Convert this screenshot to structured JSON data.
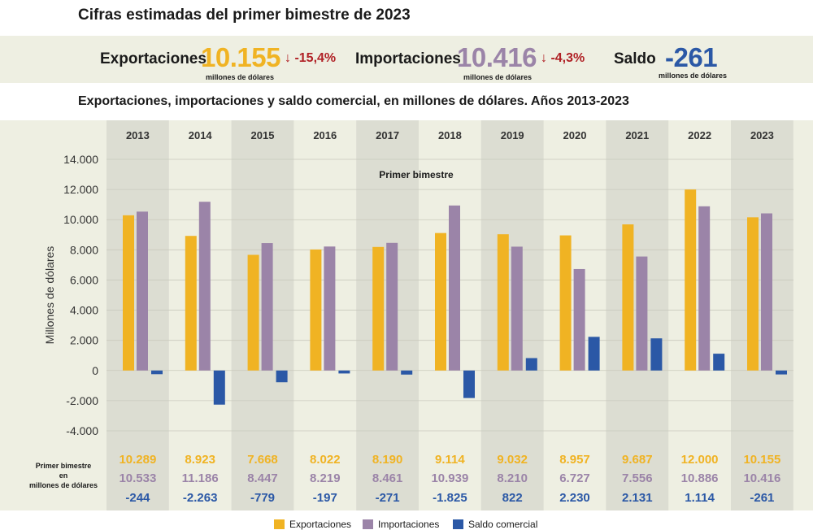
{
  "title": "Cifras estimadas del primer bimestre de 2023",
  "kpis": {
    "exports_label": "Exportaciones",
    "exports_value": "10.155",
    "exports_unit": "millones de dólares",
    "exports_change": "↓ -15,4%",
    "imports_label": "Importaciones",
    "imports_value": "10.416",
    "imports_unit": "millones de dólares",
    "imports_change": "↓ -4,3%",
    "balance_label": "Saldo",
    "balance_value": "-261",
    "balance_unit": "millones de dólares"
  },
  "subtitle": "Exportaciones, importaciones y saldo comercial, en millones de dólares. Años 2013-2023",
  "colors": {
    "exports": "#f0b323",
    "imports": "#9b84a8",
    "balance": "#2b58a6",
    "shade": "#dcddd2",
    "band": "#eeefe2"
  },
  "chart_data": {
    "type": "bar",
    "annotation": "Primer bimestre",
    "ylabel": "Millones de dólares",
    "ylim": [
      -4000,
      14000
    ],
    "yticks": [
      "14.000",
      "12.000",
      "10.000",
      "8.000",
      "6.000",
      "4.000",
      "2.000",
      "0",
      "-2.000",
      "-4.000"
    ],
    "grid": true,
    "categories": [
      "2013",
      "2014",
      "2015",
      "2016",
      "2017",
      "2018",
      "2019",
      "2020",
      "2021",
      "2022",
      "2023"
    ],
    "series": [
      {
        "name": "Exportaciones",
        "values": [
          10289,
          8923,
          7668,
          8022,
          8190,
          9114,
          9032,
          8957,
          9687,
          12000,
          10155
        ]
      },
      {
        "name": "Importaciones",
        "values": [
          10533,
          11186,
          8447,
          8219,
          8461,
          10939,
          8210,
          6727,
          7556,
          10886,
          10416
        ]
      },
      {
        "name": "Saldo comercial",
        "values": [
          -244,
          -2263,
          -779,
          -197,
          -271,
          -1825,
          822,
          2230,
          2131,
          1114,
          -261
        ]
      }
    ],
    "table_label": [
      "Primer bimestre",
      "en",
      "millones de dólares"
    ],
    "table": {
      "exports": [
        "10.289",
        "8.923",
        "7.668",
        "8.022",
        "8.190",
        "9.114",
        "9.032",
        "8.957",
        "9.687",
        "12.000",
        "10.155"
      ],
      "imports": [
        "10.533",
        "11.186",
        "8.447",
        "8.219",
        "8.461",
        "10.939",
        "8.210",
        "6.727",
        "7.556",
        "10.886",
        "10.416"
      ],
      "balance": [
        "-244",
        "-2.263",
        "-779",
        "-197",
        "-271",
        "-1.825",
        "822",
        "2.230",
        "2.131",
        "1.114",
        "-261"
      ]
    },
    "legend": [
      "Exportaciones",
      "Importaciones",
      "Saldo comercial"
    ]
  }
}
